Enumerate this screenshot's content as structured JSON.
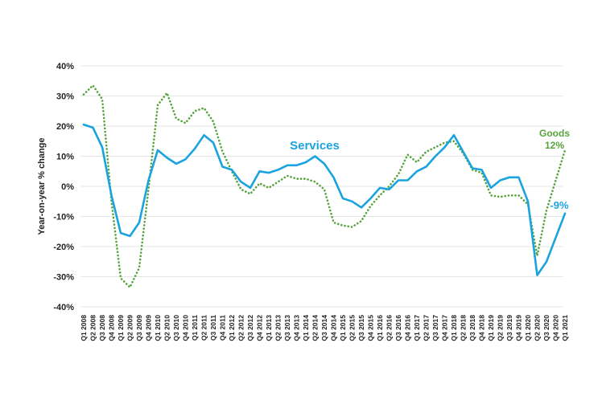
{
  "chart_data": {
    "type": "line",
    "title": "",
    "xlabel": "",
    "ylabel": "Year-on-year % change",
    "ylim": [
      -40,
      40
    ],
    "yticks": [
      40,
      30,
      20,
      10,
      0,
      -10,
      -20,
      -30,
      -40
    ],
    "ytick_labels": [
      "40%",
      "30%",
      "20%",
      "10%",
      "0%",
      "-10%",
      "-20%",
      "-30%",
      "-40%"
    ],
    "grid": true,
    "legend": "none",
    "categories": [
      "Q1 2008",
      "Q2 2008",
      "Q3 2008",
      "Q4 2008",
      "Q1 2009",
      "Q2 2009",
      "Q3 2009",
      "Q4 2009",
      "Q1 2010",
      "Q2 2010",
      "Q3 2010",
      "Q4 2010",
      "Q1 2011",
      "Q2 2011",
      "Q3 2011",
      "Q4 2011",
      "Q1 2012",
      "Q2 2012",
      "Q3 2012",
      "Q4 2012",
      "Q1 2013",
      "Q2 2013",
      "Q3 2013",
      "Q4 2013",
      "Q1 2014",
      "Q2 2014",
      "Q3 2014",
      "Q4 2014",
      "Q1 2015",
      "Q2 2015",
      "Q3 2015",
      "Q4 2015",
      "Q1 2016",
      "Q2 2016",
      "Q3 2016",
      "Q4 2016",
      "Q1 2017",
      "Q2 2017",
      "Q3 2017",
      "Q4 2017",
      "Q1 2018",
      "Q2 2018",
      "Q3 2018",
      "Q4 2018",
      "Q1 2019",
      "Q2 2019",
      "Q3 2019",
      "Q4 2019",
      "Q1 2020",
      "Q2 2020",
      "Q3 2020",
      "Q4 2020",
      "Q1 2021"
    ],
    "series": [
      {
        "name": "Services",
        "color": "#1aa3df",
        "style": "solid",
        "values": [
          20.5,
          19.5,
          13,
          -3,
          -15.5,
          -16.5,
          -12,
          2,
          12,
          9.5,
          7.5,
          9,
          12.5,
          17,
          14.5,
          6.5,
          5.5,
          1.5,
          -0.5,
          5,
          4.5,
          5.5,
          7,
          7,
          8,
          10,
          7.5,
          3,
          -4,
          -5,
          -7,
          -4,
          -0.5,
          -1,
          2,
          2,
          5,
          6.5,
          10,
          13,
          17,
          11.5,
          6,
          5.5,
          -0.5,
          2,
          3,
          3,
          -5,
          -29.5,
          -25,
          -17,
          -9
        ]
      },
      {
        "name": "Goods",
        "color": "#56a33c",
        "style": "dotted",
        "values": [
          30.5,
          33.5,
          29,
          -5,
          -30.5,
          -33.5,
          -27,
          -1,
          27,
          31,
          22.5,
          21,
          25,
          26,
          21.5,
          11.5,
          5,
          -1,
          -2.5,
          1,
          -0.5,
          1.5,
          3.5,
          2.5,
          2.5,
          1.5,
          -1,
          -12,
          -13,
          -13.5,
          -11.5,
          -6.5,
          -3,
          0,
          4,
          10.5,
          8,
          11.5,
          13,
          14.5,
          15,
          11,
          5.5,
          4.5,
          -3,
          -3.5,
          -3,
          -3,
          -6,
          -23,
          -8,
          2,
          12
        ]
      }
    ],
    "annotations": [
      {
        "text": "Services",
        "color": "#1aa3df"
      },
      {
        "text": "Goods",
        "color": "#56a33c"
      },
      {
        "text": "12%",
        "color": "#56a33c"
      },
      {
        "text": "-9%",
        "color": "#1aa3df"
      }
    ]
  }
}
